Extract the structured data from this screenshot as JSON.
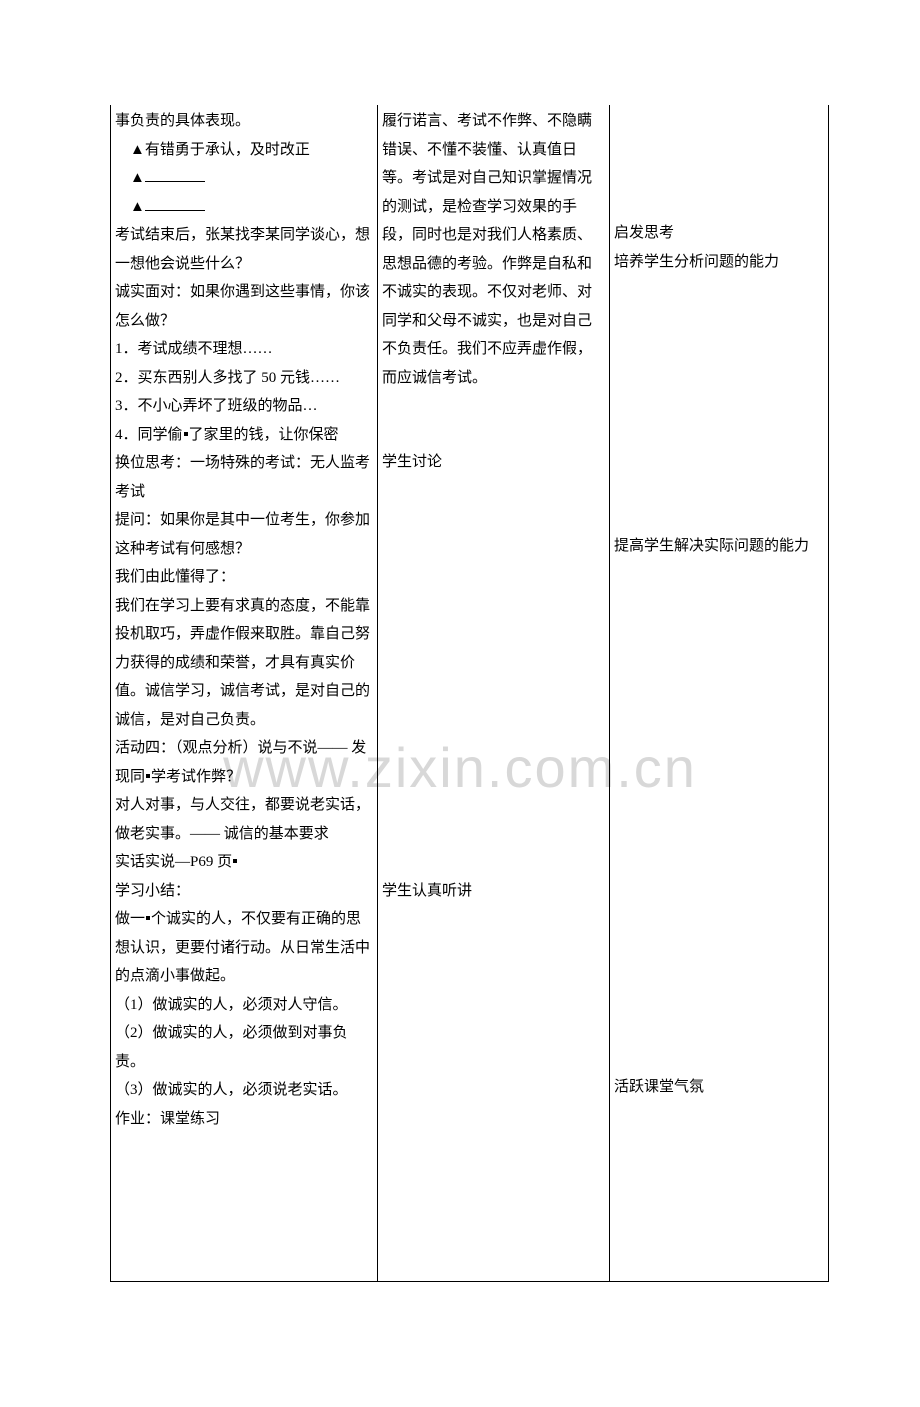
{
  "watermark": "www.zixin.com.cn",
  "table": {
    "col1": {
      "l1": "事负责的具体表现。",
      "l2": "▲有错勇于承认，及时改正",
      "l3": "▲",
      "l4": "▲",
      "l5": "考试结束后，张某找李某同学谈心，想一想他会说些什么？",
      "l6": "诚实面对：如果你遇到这些事情，你该怎么做？",
      "l7": "1．考试成绩不理想……",
      "l8": "2．买东西别人多找了 50 元钱……",
      "l9": "3．不小心弄坏了班级的物品…",
      "l10a": "4．同学偷",
      "l10b": "了家里的钱，让你保密",
      "l11": "换位思考：一场特殊的考试：无人监考考试",
      "l12": "提问：如果你是其中一位考生，你参加这种考试有何感想？",
      "l13": "我们由此懂得了：",
      "l14": "我们在学习上要有求真的态度，不能靠投机取巧，弄虚作假来取胜。靠自己努力获得的成绩和荣誉，才具有真实价值。诚信学习，诚信考试，是对自己的诚信，是对自己负责。",
      "l15a": "活动四：（观点分析）说与不说—— 发现同",
      "l15b": "学考试作弊？",
      "l16": "对人对事，与人交往，都要说老实话，做老实事。—— 诚信的基本要求",
      "l17a": "实话实说—P69 页",
      "l18": "学习小结：",
      "l19a": "做一",
      "l19b": "个诚实的人，不仅要有正确的思想认识，更要付诸行动。从日常生活中的点滴小事做起。",
      "l20": "（1）做诚实的人，必须对人守信。",
      "l21": "（2）做诚实的人，必须做到对事负责。",
      "l22": "（3）做诚实的人，必须说老实话。",
      "l23": "作业：课堂练习"
    },
    "col2": {
      "p1": "履行诺言、考试不作弊、不隐瞒错误、不懂不装懂、认真值日等。考试是对自己知识掌握情况的测试，是检查学习效果的手段，同时也是对我们人格素质、思想品德的考验。作弊是自私和不诚实的表现。不仅对老师、对同学和父母不诚实，也是对自己不负责任。我们不应弄虚作假，而应诚信考试。",
      "p2": "学生讨论",
      "p3": "学生认真听讲"
    },
    "col3": {
      "p1": "启发思考",
      "p2": "培养学生分析问题的能力",
      "p3": "提高学生解决实际问题的能力",
      "p4": "活跃课堂气氛"
    }
  }
}
